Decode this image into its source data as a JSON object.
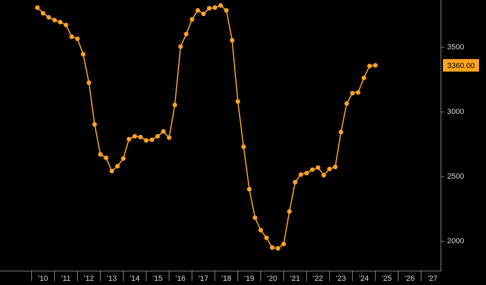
{
  "chart_data": {
    "type": "line",
    "x": [
      2010.25,
      2010.5,
      2010.75,
      2011,
      2011.25,
      2011.5,
      2011.75,
      2012,
      2012.25,
      2012.5,
      2012.75,
      2013,
      2013.25,
      2013.5,
      2013.75,
      2014,
      2014.25,
      2014.5,
      2014.75,
      2015,
      2015.25,
      2015.5,
      2015.75,
      2016,
      2016.25,
      2016.5,
      2016.75,
      2017,
      2017.25,
      2017.5,
      2017.75,
      2018,
      2018.25,
      2018.5,
      2018.75,
      2019,
      2019.25,
      2019.5,
      2019.75,
      2020,
      2020.25,
      2020.5,
      2020.75,
      2021,
      2021.25,
      2021.5,
      2021.75,
      2022,
      2022.25,
      2022.5,
      2022.75,
      2023,
      2023.25,
      2023.5,
      2023.75,
      2024,
      2024.25,
      2024.5,
      2024.75,
      2025
    ],
    "series": [
      {
        "color": "#ffa320",
        "values": [
          3806,
          3763,
          3731,
          3710,
          3694,
          3672,
          3581,
          3565,
          3446,
          3226,
          2903,
          2672,
          2645,
          2543,
          2581,
          2640,
          2790,
          2812,
          2806,
          2780,
          2785,
          2812,
          2850,
          2801,
          3054,
          3505,
          3602,
          3715,
          3785,
          3758,
          3801,
          3806,
          3823,
          3785,
          3554,
          3081,
          2731,
          2403,
          2183,
          2086,
          2027,
          1952,
          1946,
          1979,
          2231,
          2457,
          2516,
          2527,
          2554,
          2570,
          2511,
          2559,
          2575,
          2844,
          3065,
          3145,
          3151,
          3263,
          3355,
          3360
        ],
        "last_label": "3360.00"
      }
    ],
    "xlim": [
      2008.62,
      2027.86
    ],
    "xticks": [
      {
        "value": 2010.5,
        "label": "'10"
      },
      {
        "value": 2011.5,
        "label": "'11"
      },
      {
        "value": 2012.5,
        "label": "'12"
      },
      {
        "value": 2013.5,
        "label": "'13"
      },
      {
        "value": 2014.5,
        "label": "'14"
      },
      {
        "value": 2015.5,
        "label": "'15"
      },
      {
        "value": 2016.5,
        "label": "'16"
      },
      {
        "value": 2017.5,
        "label": "'17"
      },
      {
        "value": 2018.5,
        "label": "'18"
      },
      {
        "value": 2019.5,
        "label": "'19"
      },
      {
        "value": 2020.5,
        "label": "'20"
      },
      {
        "value": 2021.5,
        "label": "'21"
      },
      {
        "value": 2022.5,
        "label": "'22"
      },
      {
        "value": 2023.5,
        "label": "'23"
      },
      {
        "value": 2024.5,
        "label": "'24"
      },
      {
        "value": 2025.5,
        "label": "'25"
      },
      {
        "value": 2026.5,
        "label": "'26"
      },
      {
        "value": 2027.5,
        "label": "'27"
      }
    ],
    "ylim": [
      1770,
      3865
    ],
    "yticks": [
      2000,
      2500,
      3000,
      3500
    ]
  }
}
